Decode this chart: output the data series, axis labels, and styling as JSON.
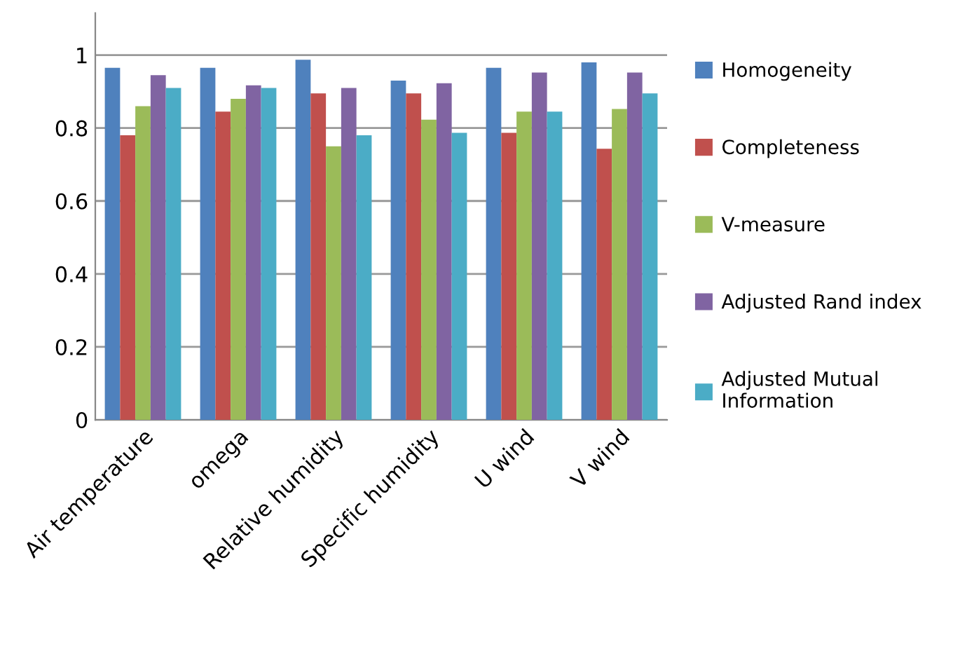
{
  "chart_data": {
    "type": "bar",
    "categories": [
      "Air temperature",
      "omega",
      "Relative humidity",
      "Specific humidity",
      "U wind",
      "V wind"
    ],
    "series": [
      {
        "name": "Homogeneity",
        "color": "#4f81bd",
        "values": [
          0.965,
          0.965,
          0.987,
          0.93,
          0.965,
          0.98
        ]
      },
      {
        "name": "Completeness",
        "color": "#c0504d",
        "values": [
          0.78,
          0.845,
          0.895,
          0.895,
          0.787,
          0.743
        ]
      },
      {
        "name": "V-measure",
        "color": "#9bbb59",
        "values": [
          0.86,
          0.88,
          0.75,
          0.823,
          0.845,
          0.852
        ]
      },
      {
        "name": "Adjusted Rand index",
        "color": "#8064a2",
        "values": [
          0.945,
          0.917,
          0.91,
          0.923,
          0.952,
          0.952
        ]
      },
      {
        "name": "Adjusted Mutual Information",
        "color": "#4bacc6",
        "values": [
          0.91,
          0.91,
          0.78,
          0.787,
          0.845,
          0.895
        ]
      }
    ],
    "ylim": [
      0,
      1.115
    ],
    "yticks": [
      0,
      0.2,
      0.4,
      0.6,
      0.8,
      1
    ],
    "grid": "y",
    "legend": "right"
  }
}
